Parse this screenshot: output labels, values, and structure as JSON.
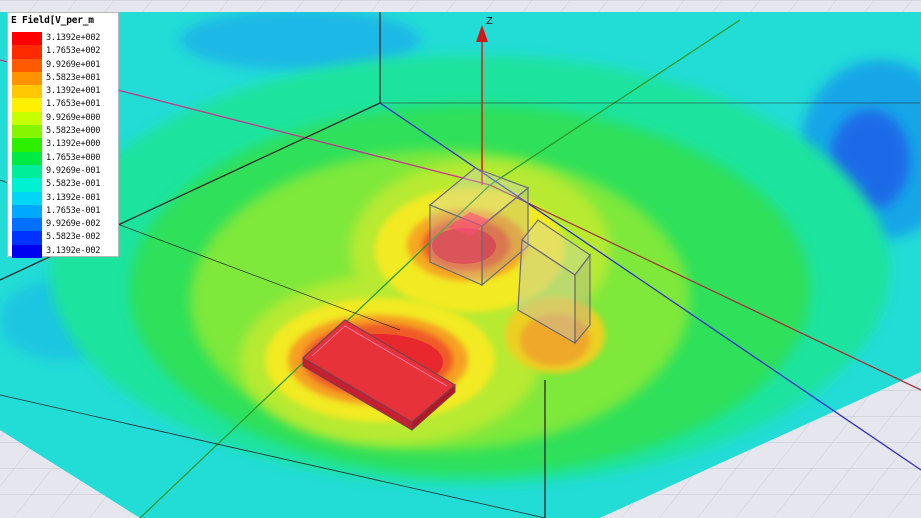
{
  "legend": {
    "title": "E Field[V_per_m",
    "entries": [
      {
        "label": "3.1392e+002",
        "color": "#ff0000"
      },
      {
        "label": "1.7653e+002",
        "color": "#ff2a00"
      },
      {
        "label": "9.9269e+001",
        "color": "#ff5a00"
      },
      {
        "label": "5.5823e+001",
        "color": "#ff9300"
      },
      {
        "label": "3.1392e+001",
        "color": "#ffc800"
      },
      {
        "label": "1.7653e+001",
        "color": "#fff000"
      },
      {
        "label": "9.9269e+000",
        "color": "#c8ff00"
      },
      {
        "label": "5.5823e+000",
        "color": "#86f500"
      },
      {
        "label": "3.1392e+000",
        "color": "#2df000"
      },
      {
        "label": "1.7653e+000",
        "color": "#00ea44"
      },
      {
        "label": "9.9269e-001",
        "color": "#00ee99"
      },
      {
        "label": "5.5823e-001",
        "color": "#00f0d2"
      },
      {
        "label": "3.1392e-001",
        "color": "#00d6f5"
      },
      {
        "label": "1.7653e-001",
        "color": "#00a8ff"
      },
      {
        "label": "9.9269e-002",
        "color": "#0070ff"
      },
      {
        "label": "5.5823e-002",
        "color": "#0033ff"
      },
      {
        "label": "3.1392e-002",
        "color": "#0000f0"
      }
    ]
  },
  "axes": {
    "z_label": "Z",
    "x_color": "#b03838",
    "y_color": "#2a9a2a",
    "z_color": "#e02020",
    "extra_color": "#3030c8"
  },
  "colors": {
    "background": "#ffffff",
    "grid_fill": "#e6e7ee",
    "grid_line": "#c4c6d2",
    "box_edge": "#6a6a7a",
    "inner_magenta": "#c0206a",
    "inner_pink": "#ff6ba8"
  }
}
